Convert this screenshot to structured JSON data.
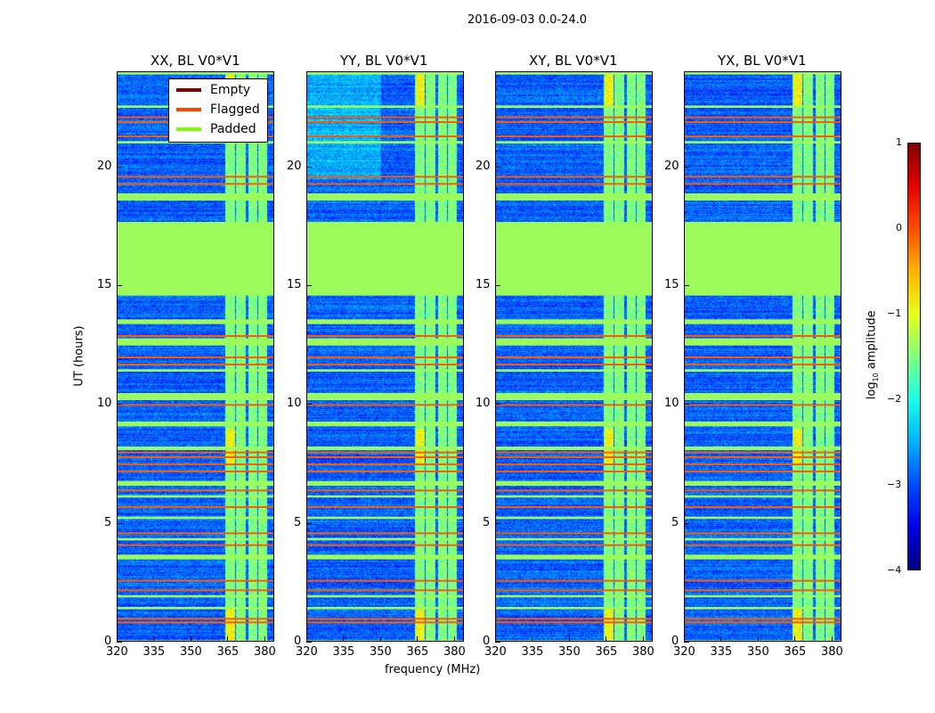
{
  "chart_data": {
    "type": "heatmap",
    "suptitle": "2016-09-03 0.0-24.0",
    "xlabel": "frequency (MHz)",
    "ylabel": "UT (hours)",
    "xlim": [
      320,
      384
    ],
    "ylim": [
      0,
      24
    ],
    "xticks": [
      "320",
      "335",
      "350",
      "365",
      "380"
    ],
    "yticks": [
      "0",
      "5",
      "10",
      "15",
      "20"
    ],
    "panels": [
      {
        "title": "XX, BL V0*V1"
      },
      {
        "title": "YY, BL V0*V1"
      },
      {
        "title": "XY, BL V0*V1"
      },
      {
        "title": "YX, BL V0*V1"
      }
    ],
    "legend": {
      "placement": "upper-left of first panel",
      "entries": [
        {
          "label": "Empty",
          "color": "#800000"
        },
        {
          "label": "Flagged",
          "color": "#ff4500"
        },
        {
          "label": "Padded",
          "color": "#7cfc00"
        }
      ]
    },
    "colorbar": {
      "label": "log10 amplitude",
      "label_main": "log",
      "label_sub": "10",
      "label_tail": " amplitude",
      "range": [
        -4,
        1
      ],
      "ticks": [
        "1",
        "0",
        "−1",
        "−2",
        "−3",
        "−4"
      ],
      "colormap": "jet"
    },
    "padded_hours": [
      [
        14.6,
        17.7
      ],
      [
        18.6,
        18.9
      ],
      [
        23.9,
        24
      ],
      [
        22.5,
        22.6
      ],
      [
        21.0,
        21.1
      ],
      [
        13.4,
        13.6
      ],
      [
        12.5,
        12.8
      ],
      [
        11.4,
        11.5
      ],
      [
        10.2,
        10.5
      ],
      [
        9.1,
        9.3
      ],
      [
        8.1,
        8.25
      ],
      [
        6.6,
        6.8
      ],
      [
        6.1,
        6.2
      ],
      [
        5.2,
        5.3
      ],
      [
        4.3,
        4.4
      ],
      [
        3.5,
        3.7
      ],
      [
        1.9,
        2.0
      ],
      [
        1.4,
        1.5
      ],
      [
        0,
        0.1
      ]
    ],
    "flagged_hours": [
      22.1,
      21.9,
      21.3,
      19.6,
      19.3,
      12.9,
      12.0,
      11.7,
      10.0,
      8.0,
      7.8,
      7.5,
      7.2,
      6.4,
      5.7,
      4.6,
      4.1,
      2.6,
      2.2,
      1.0,
      0.85
    ],
    "bright_bands_mhz": [
      [
        363.5,
        367.5
      ],
      [
        368,
        372
      ],
      [
        373,
        376.5
      ],
      [
        377,
        380.5
      ]
    ]
  }
}
